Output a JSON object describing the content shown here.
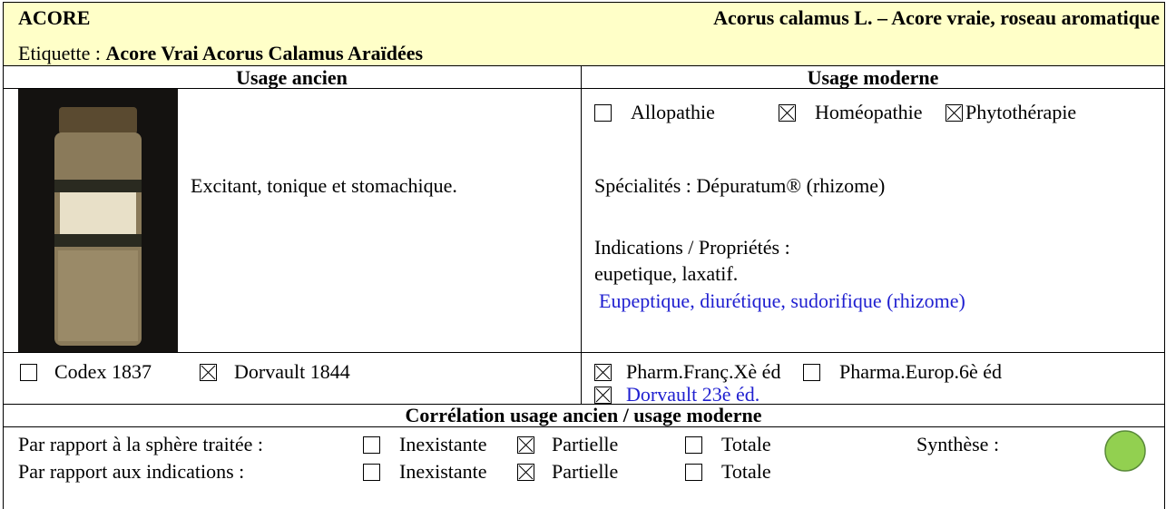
{
  "header": {
    "title": "ACORE",
    "latin": "Acorus calamus L. – Acore vraie, roseau aromatique",
    "label_prefix": "Etiquette :",
    "label": "Acore Vrai Acorus Calamus Araïdées"
  },
  "columns": [
    "Usage ancien",
    "Usage moderne"
  ],
  "ancien": {
    "text": "Excitant, tonique et stomachique.",
    "sources": [
      {
        "label": "Codex 1837",
        "checked": false
      },
      {
        "label": "Dorvault 1844",
        "checked": true
      }
    ]
  },
  "moderne": {
    "usages": [
      {
        "label": "Allopathie",
        "checked": false
      },
      {
        "label": "Homéopathie",
        "checked": true
      },
      {
        "label": "Phytothérapie",
        "checked": true
      }
    ],
    "specialites": "Spécialités : Dépuratum® (rhizome)",
    "indications_title": "Indications / Propriétés :",
    "indications": "eupetique, laxatif.",
    "indications_modern": "Eupeptique, diurétique, sudorifique (rhizome)",
    "sources": [
      {
        "label": "Pharm.Franç.Xè éd",
        "checked": true
      },
      {
        "label": "Pharma.Europ.6è éd",
        "checked": false
      },
      {
        "label": "Dorvault 23è éd.",
        "checked": true
      }
    ]
  },
  "correlation": {
    "title": "Corrélation usage ancien / usage moderne",
    "rows": [
      {
        "label": "Par rapport à la sphère traitée :",
        "options": [
          {
            "label": "Inexistante",
            "checked": false
          },
          {
            "label": "Partielle",
            "checked": true
          },
          {
            "label": "Totale",
            "checked": false
          }
        ]
      },
      {
        "label": "Par rapport aux indications :",
        "options": [
          {
            "label": "Inexistante",
            "checked": false
          },
          {
            "label": "Partielle",
            "checked": true
          },
          {
            "label": "Totale",
            "checked": false
          }
        ]
      }
    ],
    "synthese_label": "Synthèse :",
    "synthese_color": "#92d050"
  }
}
